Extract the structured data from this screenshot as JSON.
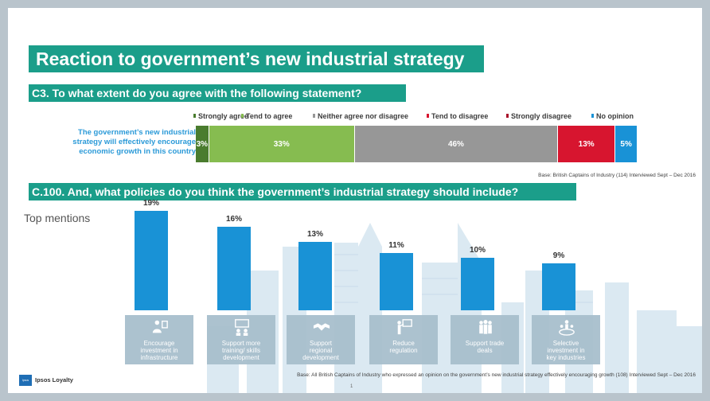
{
  "title": "Reaction to government’s new industrial strategy",
  "question1": "C3. To what extent do you agree with the following statement?",
  "question2": "C.100. And, what policies do you think the government’s industrial strategy should include?",
  "top_mentions_label": "Top mentions",
  "statement_lines": [
    "The government’s new industrial",
    "strategy will effectively encourage",
    "economic growth in this country"
  ],
  "base1": "Base: British Captains of Industry (114) Interviewed Sept – Dec 2016",
  "base2": "Base: All British Captains of Industry who expressed an opinion on the government’s new industrial strategy effectively encouraging growth (108) Interviewed Sept – Dec 2016",
  "logo_mark": "Ipsos",
  "logo_text": "Ipsos Loyalty",
  "page_number": "1",
  "colors": {
    "band": "#1b9e8a",
    "bar": "#1992d6",
    "statement_text": "#2b9ad8",
    "icon_box": "#a8bfcd"
  },
  "chart_data": [
    {
      "type": "bar",
      "orientation": "horizontal-stacked",
      "categories": [
        "The government’s new industrial strategy will effectively encourage economic growth in this country"
      ],
      "legend_position": "top",
      "series": [
        {
          "name": "Strongly agree",
          "values": [
            3
          ],
          "label": "3%",
          "color": "#4a7c2e"
        },
        {
          "name": "Tend to agree",
          "values": [
            33
          ],
          "label": "33%",
          "color": "#86bc50"
        },
        {
          "name": "Neither agree nor disagree",
          "values": [
            46
          ],
          "label": "46%",
          "color": "#979797"
        },
        {
          "name": "Tend to disagree",
          "values": [
            13
          ],
          "label": "13%",
          "color": "#d7152f"
        },
        {
          "name": "Strongly disagree",
          "values": [
            0
          ],
          "label": "",
          "color": "#a8112a"
        },
        {
          "name": "No opinion",
          "values": [
            5
          ],
          "label": "5%",
          "color": "#1992d6"
        }
      ]
    },
    {
      "type": "bar",
      "orientation": "vertical",
      "categories": [
        {
          "label_lines": [
            "Encourage",
            "investment in",
            "infrastructure"
          ],
          "icon": "person-presentation-icon"
        },
        {
          "label_lines": [
            "Support more",
            "training/ skills",
            "development"
          ],
          "icon": "training-icon"
        },
        {
          "label_lines": [
            "Support",
            "regional",
            "development"
          ],
          "icon": "handshake-icon"
        },
        {
          "label_lines": [
            "Reduce",
            "regulation"
          ],
          "icon": "presenter-board-icon"
        },
        {
          "label_lines": [
            "Support trade",
            "deals"
          ],
          "icon": "group-icon"
        },
        {
          "label_lines": [
            "Selective",
            "investment in",
            "key industries"
          ],
          "icon": "people-globe-icon"
        }
      ],
      "values": [
        19,
        16,
        13,
        11,
        10,
        9
      ],
      "value_labels": [
        "19%",
        "16%",
        "13%",
        "11%",
        "10%",
        "9%"
      ],
      "ylim": [
        0,
        19
      ]
    }
  ]
}
